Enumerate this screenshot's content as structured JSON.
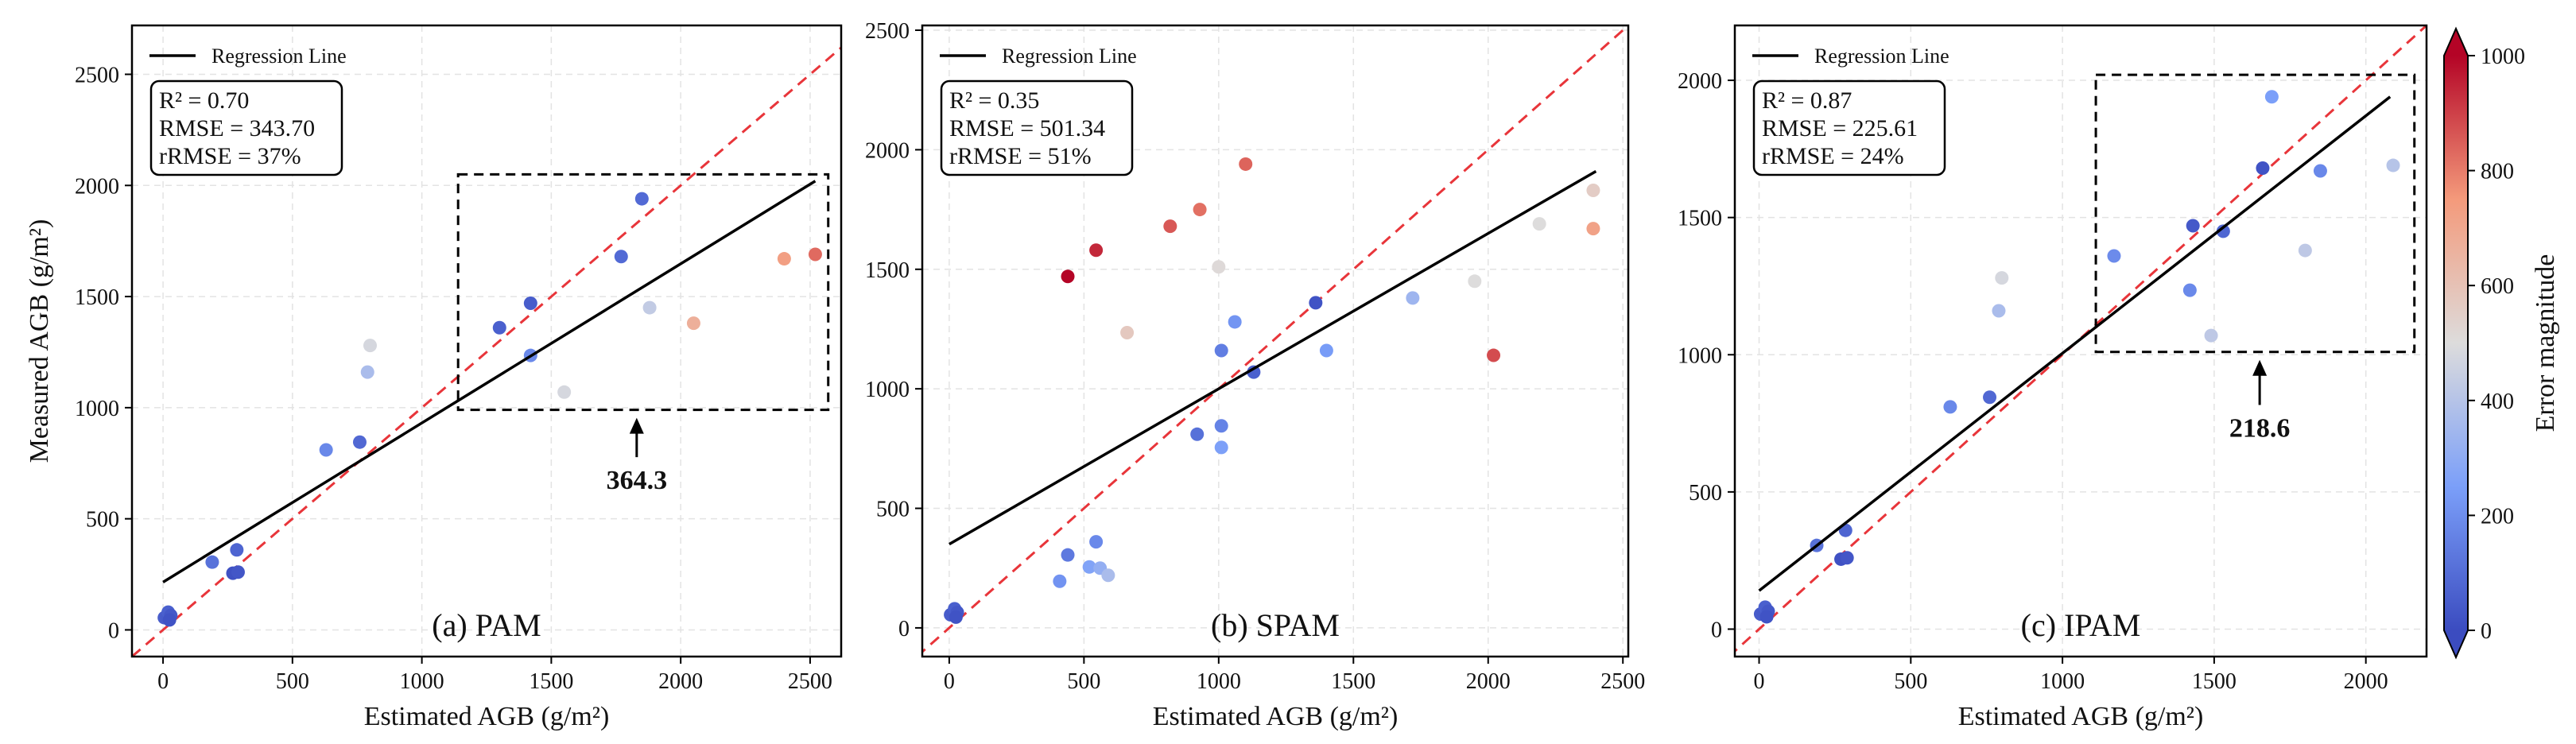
{
  "chart_data": [
    {
      "type": "scatter",
      "panel_label": "(a) PAM",
      "xlabel": "Estimated AGB (g/m²)",
      "ylabel": "Measured AGB (g/m²)",
      "xlim": [
        -120,
        2620
      ],
      "ylim": [
        -120,
        2720
      ],
      "xticks": [
        0,
        500,
        1000,
        1500,
        2000,
        2500
      ],
      "yticks": [
        0,
        500,
        1000,
        1500,
        2000,
        2500
      ],
      "grid": true,
      "legend": "Regression Line",
      "stats": {
        "r2": "R² = 0.70",
        "rmse": "RMSE = 343.70",
        "rrmse": "rRMSE = 37%"
      },
      "regression": {
        "x": [
          0,
          2520
        ],
        "y": [
          215,
          2020
        ]
      },
      "box": {
        "x0": 1140,
        "x1": 2570,
        "y0": 990,
        "y1": 2050
      },
      "annotation": {
        "text": "364.3",
        "x": 1830,
        "y": 670
      },
      "points": [
        {
          "x": 5,
          "y": 55,
          "err": 50
        },
        {
          "x": 15,
          "y": 60,
          "err": 45
        },
        {
          "x": 20,
          "y": 80,
          "err": 60
        },
        {
          "x": 30,
          "y": 65,
          "err": 35
        },
        {
          "x": 25,
          "y": 45,
          "err": 20
        },
        {
          "x": 190,
          "y": 305,
          "err": 115
        },
        {
          "x": 270,
          "y": 255,
          "err": 15
        },
        {
          "x": 290,
          "y": 260,
          "err": 30
        },
        {
          "x": 285,
          "y": 360,
          "err": 75
        },
        {
          "x": 630,
          "y": 810,
          "err": 180
        },
        {
          "x": 760,
          "y": 845,
          "err": 85
        },
        {
          "x": 790,
          "y": 1160,
          "err": 370
        },
        {
          "x": 800,
          "y": 1280,
          "err": 480
        },
        {
          "x": 1300,
          "y": 1360,
          "err": 60
        },
        {
          "x": 1420,
          "y": 1470,
          "err": 50
        },
        {
          "x": 1420,
          "y": 1235,
          "err": 185
        },
        {
          "x": 1550,
          "y": 1070,
          "err": 480
        },
        {
          "x": 1770,
          "y": 1680,
          "err": 90
        },
        {
          "x": 1850,
          "y": 1940,
          "err": 90
        },
        {
          "x": 1880,
          "y": 1450,
          "err": 430
        },
        {
          "x": 2050,
          "y": 1380,
          "err": 670
        },
        {
          "x": 2400,
          "y": 1670,
          "err": 730
        },
        {
          "x": 2520,
          "y": 1690,
          "err": 830
        }
      ]
    },
    {
      "type": "scatter",
      "panel_label": "(b) SPAM",
      "xlabel": "Estimated AGB (g/m²)",
      "ylabel": "",
      "xlim": [
        -100,
        2520
      ],
      "ylim": [
        -120,
        2520
      ],
      "xticks": [
        0,
        500,
        1000,
        1500,
        2000,
        2500
      ],
      "yticks": [
        0,
        500,
        1000,
        1500,
        2000,
        2500
      ],
      "grid": true,
      "legend": "Regression Line",
      "stats": {
        "r2": "R² = 0.35",
        "rmse": "RMSE = 501.34",
        "rrmse": "rRMSE = 51%"
      },
      "regression": {
        "x": [
          0,
          2400
        ],
        "y": [
          350,
          1910
        ]
      },
      "box": null,
      "annotation": null,
      "points": [
        {
          "x": 5,
          "y": 55,
          "err": 50
        },
        {
          "x": 15,
          "y": 60,
          "err": 45
        },
        {
          "x": 20,
          "y": 80,
          "err": 60
        },
        {
          "x": 30,
          "y": 65,
          "err": 35
        },
        {
          "x": 25,
          "y": 45,
          "err": 20
        },
        {
          "x": 410,
          "y": 195,
          "err": 215
        },
        {
          "x": 440,
          "y": 305,
          "err": 135
        },
        {
          "x": 440,
          "y": 1470,
          "err": 1030
        },
        {
          "x": 520,
          "y": 255,
          "err": 265
        },
        {
          "x": 545,
          "y": 360,
          "err": 185
        },
        {
          "x": 545,
          "y": 1580,
          "err": 940
        },
        {
          "x": 560,
          "y": 250,
          "err": 310
        },
        {
          "x": 590,
          "y": 220,
          "err": 370
        },
        {
          "x": 660,
          "y": 1235,
          "err": 575
        },
        {
          "x": 820,
          "y": 1680,
          "err": 860
        },
        {
          "x": 920,
          "y": 810,
          "err": 110
        },
        {
          "x": 930,
          "y": 1750,
          "err": 820
        },
        {
          "x": 1000,
          "y": 1510,
          "err": 510
        },
        {
          "x": 1010,
          "y": 845,
          "err": 165
        },
        {
          "x": 1010,
          "y": 1160,
          "err": 150
        },
        {
          "x": 1010,
          "y": 755,
          "err": 255
        },
        {
          "x": 1060,
          "y": 1280,
          "err": 220
        },
        {
          "x": 1100,
          "y": 1940,
          "err": 840
        },
        {
          "x": 1130,
          "y": 1070,
          "err": 60
        },
        {
          "x": 1360,
          "y": 1360,
          "err": 20
        },
        {
          "x": 1400,
          "y": 1160,
          "err": 240
        },
        {
          "x": 1720,
          "y": 1380,
          "err": 340
        },
        {
          "x": 1950,
          "y": 1450,
          "err": 500
        },
        {
          "x": 2020,
          "y": 1140,
          "err": 880
        },
        {
          "x": 2190,
          "y": 1690,
          "err": 500
        },
        {
          "x": 2390,
          "y": 1830,
          "err": 560
        },
        {
          "x": 2390,
          "y": 1670,
          "err": 720
        }
      ]
    },
    {
      "type": "scatter",
      "panel_label": "(c) IPAM",
      "xlabel": "Estimated AGB (g/m²)",
      "ylabel": "",
      "xlim": [
        -80,
        2200
      ],
      "ylim": [
        -100,
        2200
      ],
      "xticks": [
        0,
        500,
        1000,
        1500,
        2000
      ],
      "yticks": [
        0,
        500,
        1000,
        1500,
        2000
      ],
      "grid": true,
      "legend": "Regression Line",
      "stats": {
        "r2": "R² = 0.87",
        "rmse": "RMSE = 225.61",
        "rrmse": "rRMSE = 24%"
      },
      "regression": {
        "x": [
          0,
          2080
        ],
        "y": [
          140,
          1940
        ]
      },
      "box": {
        "x0": 1110,
        "x1": 2160,
        "y0": 1010,
        "y1": 2020
      },
      "annotation": {
        "text": "218.6",
        "x": 1650,
        "y": 730
      },
      "points": [
        {
          "x": 5,
          "y": 55,
          "err": 50
        },
        {
          "x": 15,
          "y": 60,
          "err": 45
        },
        {
          "x": 20,
          "y": 80,
          "err": 60
        },
        {
          "x": 30,
          "y": 65,
          "err": 35
        },
        {
          "x": 25,
          "y": 45,
          "err": 20
        },
        {
          "x": 190,
          "y": 305,
          "err": 115
        },
        {
          "x": 270,
          "y": 255,
          "err": 15
        },
        {
          "x": 290,
          "y": 260,
          "err": 30
        },
        {
          "x": 285,
          "y": 360,
          "err": 75
        },
        {
          "x": 630,
          "y": 810,
          "err": 180
        },
        {
          "x": 760,
          "y": 845,
          "err": 85
        },
        {
          "x": 790,
          "y": 1160,
          "err": 370
        },
        {
          "x": 800,
          "y": 1280,
          "err": 480
        },
        {
          "x": 1170,
          "y": 1360,
          "err": 190
        },
        {
          "x": 1430,
          "y": 1470,
          "err": 40
        },
        {
          "x": 1420,
          "y": 1235,
          "err": 185
        },
        {
          "x": 1490,
          "y": 1070,
          "err": 420
        },
        {
          "x": 1530,
          "y": 1450,
          "err": 80
        },
        {
          "x": 1660,
          "y": 1680,
          "err": 20
        },
        {
          "x": 1690,
          "y": 1940,
          "err": 250
        },
        {
          "x": 1800,
          "y": 1380,
          "err": 420
        },
        {
          "x": 1850,
          "y": 1670,
          "err": 180
        },
        {
          "x": 2090,
          "y": 1690,
          "err": 400
        }
      ]
    }
  ],
  "colorbar": {
    "label": "Error magnitude",
    "range": [
      0,
      1000
    ],
    "ticks": [
      0,
      200,
      400,
      600,
      800,
      1000
    ]
  }
}
